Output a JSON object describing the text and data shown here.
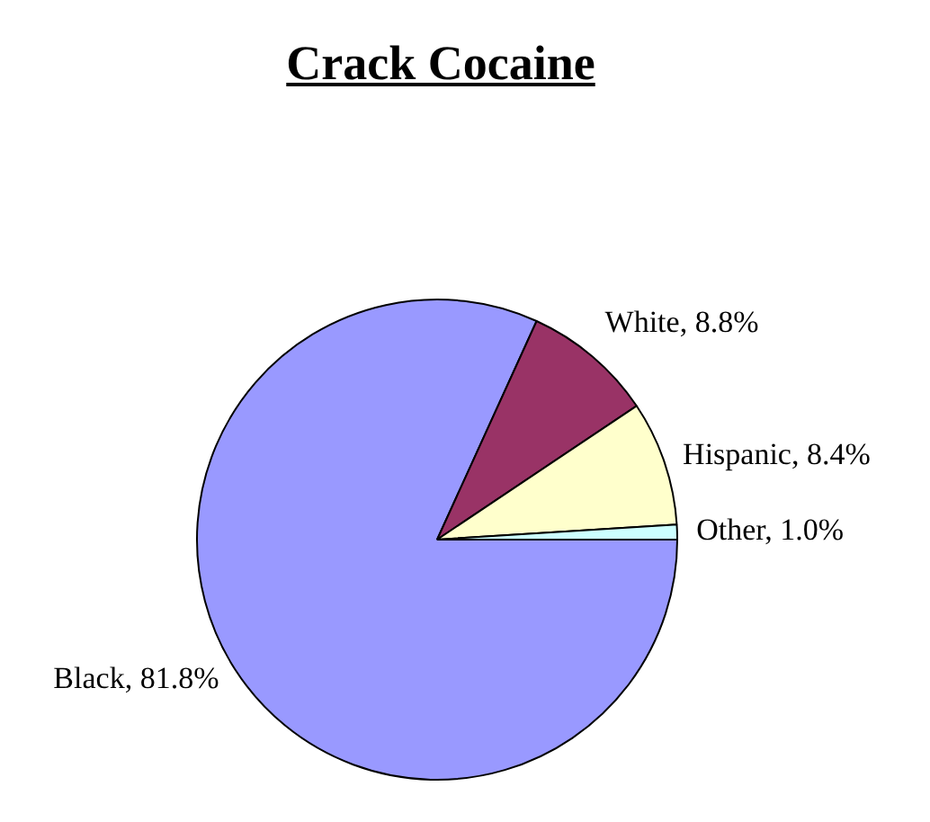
{
  "chart_data": {
    "type": "pie",
    "title": "Crack Cocaine",
    "categories": [
      "Black",
      "White",
      "Hispanic",
      "Other"
    ],
    "values": [
      81.8,
      8.8,
      8.4,
      1.0
    ],
    "value_labels": [
      "81.8%",
      "8.8%",
      "8.4%",
      "1.0%"
    ],
    "colors": [
      "#9999ff",
      "#993366",
      "#ffffcc",
      "#ccffff"
    ],
    "legend": false
  }
}
